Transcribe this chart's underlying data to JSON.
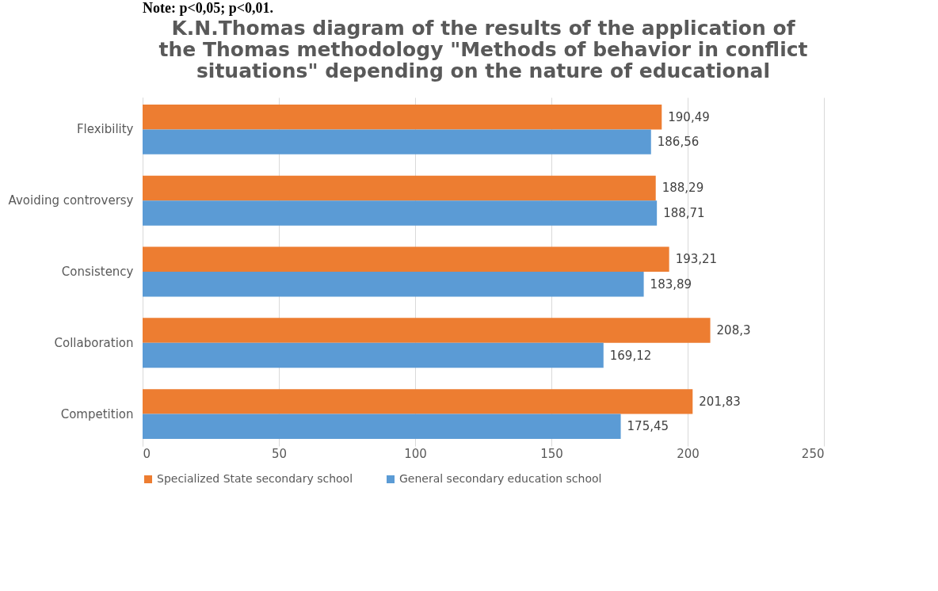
{
  "chart_data": {
    "type": "bar",
    "orientation": "horizontal",
    "title": "K.N.Thomas diagram of the results of the application of the Thomas methodology \"Methods of behavior in conflict situations\" depending on the nature of educational",
    "annotations": [
      "Note: p<0,05; p<0,01."
    ],
    "categories": [
      "Flexibility",
      "Avoiding controversy",
      "Consistency",
      "Collaboration",
      "Competition"
    ],
    "series": [
      {
        "name": "Specialized State secondary school",
        "color": "#ed7d31",
        "values": [
          190.49,
          188.29,
          193.21,
          208.3,
          201.83
        ],
        "value_labels": [
          "190,49",
          "188,29",
          "193,21",
          "208,3",
          "201,83"
        ]
      },
      {
        "name": "General secondary education school",
        "color": "#5b9bd5",
        "values": [
          186.56,
          188.71,
          183.89,
          169.12,
          175.45
        ],
        "value_labels": [
          "186,56",
          "188,71",
          "183,89",
          "169,12",
          "175,45"
        ]
      }
    ],
    "xlim": [
      0,
      250
    ],
    "xticks": [
      0,
      50,
      100,
      150,
      200,
      250
    ],
    "grid": "x",
    "legend": "bottom"
  }
}
